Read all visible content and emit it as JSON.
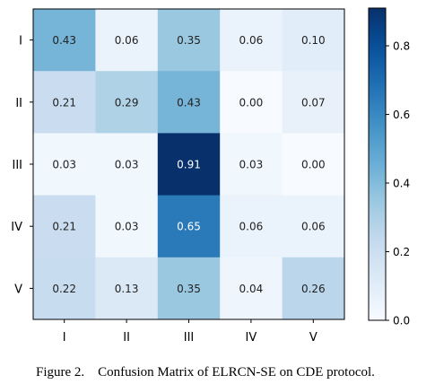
{
  "chart_data": {
    "type": "heatmap",
    "title": "",
    "xlabel": "",
    "ylabel": "",
    "x_categories": [
      "I",
      "II",
      "III",
      "IV",
      "V"
    ],
    "y_categories": [
      "I",
      "II",
      "III",
      "IV",
      "V"
    ],
    "values": [
      [
        0.43,
        0.06,
        0.35,
        0.06,
        0.1
      ],
      [
        0.21,
        0.29,
        0.43,
        0.0,
        0.07
      ],
      [
        0.03,
        0.03,
        0.91,
        0.03,
        0.0
      ],
      [
        0.21,
        0.03,
        0.65,
        0.06,
        0.06
      ],
      [
        0.22,
        0.13,
        0.35,
        0.04,
        0.26
      ]
    ],
    "cell_labels": [
      [
        "0.43",
        "0.06",
        "0.35",
        "0.06",
        "0.10"
      ],
      [
        "0.21",
        "0.29",
        "0.43",
        "0.00",
        "0.07"
      ],
      [
        "0.03",
        "0.03",
        "0.91",
        "0.03",
        "0.00"
      ],
      [
        "0.21",
        "0.03",
        "0.65",
        "0.06",
        "0.06"
      ],
      [
        "0.22",
        "0.13",
        "0.35",
        "0.04",
        "0.26"
      ]
    ],
    "colormap": "Blues",
    "colorbar": {
      "range": [
        0.0,
        0.91
      ],
      "ticks": [
        0.0,
        0.2,
        0.4,
        0.6,
        0.8
      ],
      "tick_labels": [
        "0.0",
        "0.2",
        "0.4",
        "0.6",
        "0.8"
      ]
    },
    "grid": false,
    "legend": "colorbar-right"
  },
  "caption": "Figure 2.    Confusion Matrix of ELRCN-SE on CDE protocol."
}
